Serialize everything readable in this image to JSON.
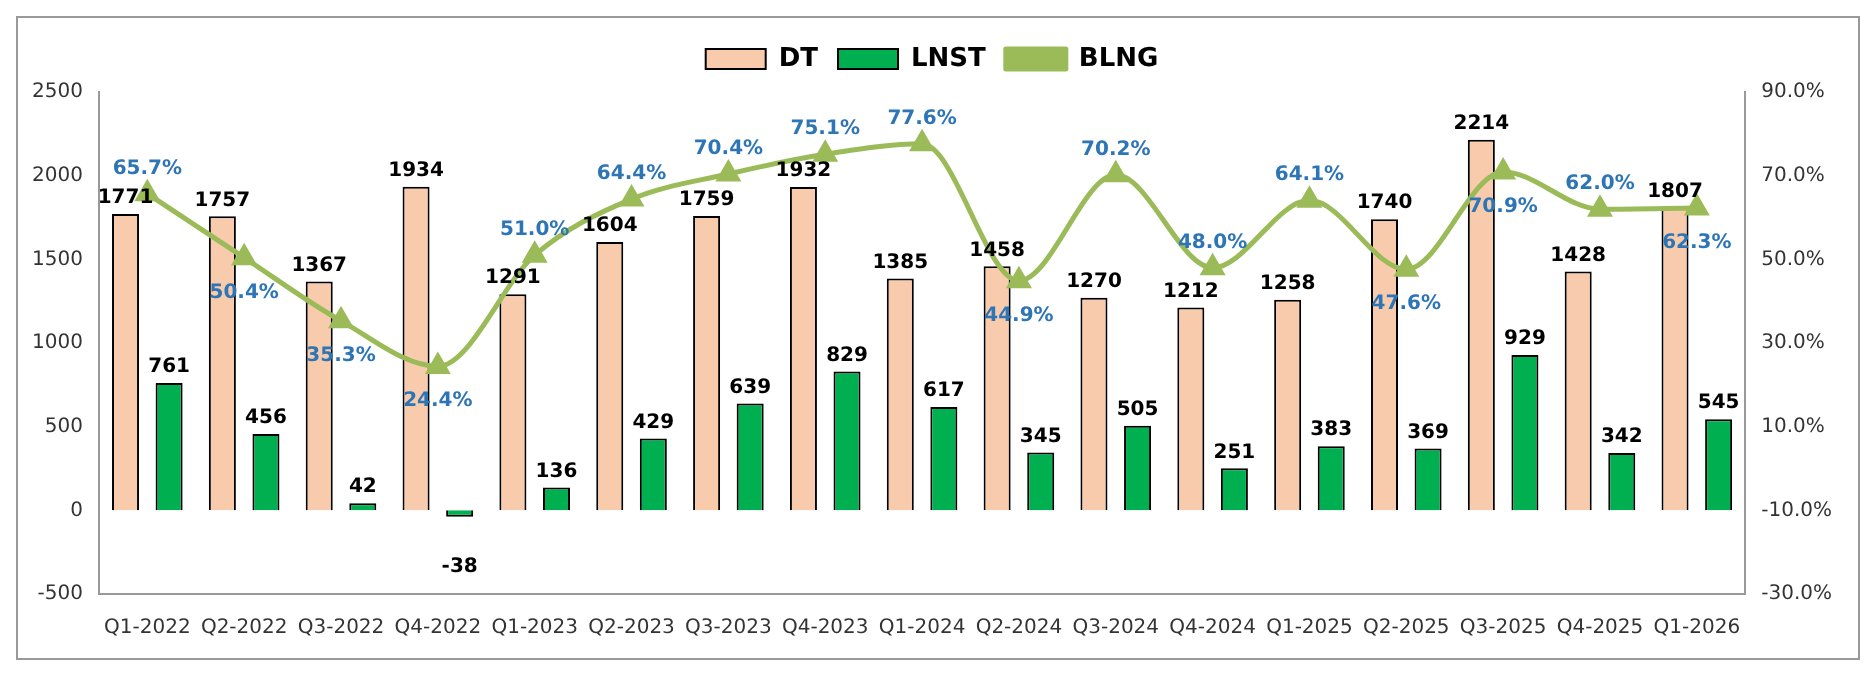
{
  "chart_data": {
    "type": "bar",
    "categories": [
      "Q1-2022",
      "Q2-2022",
      "Q3-2022",
      "Q4-2022",
      "Q1-2023",
      "Q2-2023",
      "Q3-2023",
      "Q4-2023",
      "Q1-2024",
      "Q2-2024",
      "Q3-2024",
      "Q4-2024",
      "Q1-2025",
      "Q2-2025",
      "Q3-2025",
      "Q4-2025",
      "Q1-2026"
    ],
    "series": [
      {
        "name": "DT",
        "color": "#f8cbad",
        "values": [
          1771,
          1757,
          1367,
          1934,
          1291,
          1604,
          1759,
          1932,
          1385,
          1458,
          1270,
          1212,
          1258,
          1740,
          2214,
          1428,
          1807
        ]
      },
      {
        "name": "LNST",
        "color": "#00b050",
        "values": [
          761,
          456,
          42,
          -38,
          136,
          429,
          639,
          829,
          617,
          345,
          505,
          251,
          383,
          369,
          929,
          342,
          545
        ]
      },
      {
        "name": "BLNG",
        "type": "line",
        "axis": "y2",
        "color": "#9bbb59",
        "marker": "triangle",
        "values": [
          65.7,
          50.4,
          35.3,
          24.4,
          51.0,
          64.4,
          70.4,
          75.1,
          77.6,
          44.9,
          70.2,
          48.0,
          64.1,
          47.6,
          70.9,
          62.0,
          62.3
        ],
        "value_labels": [
          "65.7%",
          "50.4%",
          "35.3%",
          "24.4%",
          "51.0%",
          "64.4%",
          "70.4%",
          "75.1%",
          "77.6%",
          "44.9%",
          "70.2%",
          "48.0%",
          "64.1%",
          "47.6%",
          "70.9%",
          "62.0%",
          "62.3%"
        ]
      }
    ],
    "ylim": [
      -500,
      2500
    ],
    "yticks": [
      -500,
      0,
      500,
      1000,
      1500,
      2000,
      2500
    ],
    "y2lim": [
      -30,
      90
    ],
    "y2ticks": [
      {
        "value": -30,
        "label": "-30.0%"
      },
      {
        "value": -10,
        "label": "-10.0%"
      },
      {
        "value": 10,
        "label": "10.0%"
      },
      {
        "value": 30,
        "label": "30.0%"
      },
      {
        "value": 50,
        "label": "50.0%"
      },
      {
        "value": 70,
        "label": "70.0%"
      },
      {
        "value": 90,
        "label": "90.0%"
      }
    ],
    "grid": false,
    "legend": "top",
    "data_labels": true
  }
}
